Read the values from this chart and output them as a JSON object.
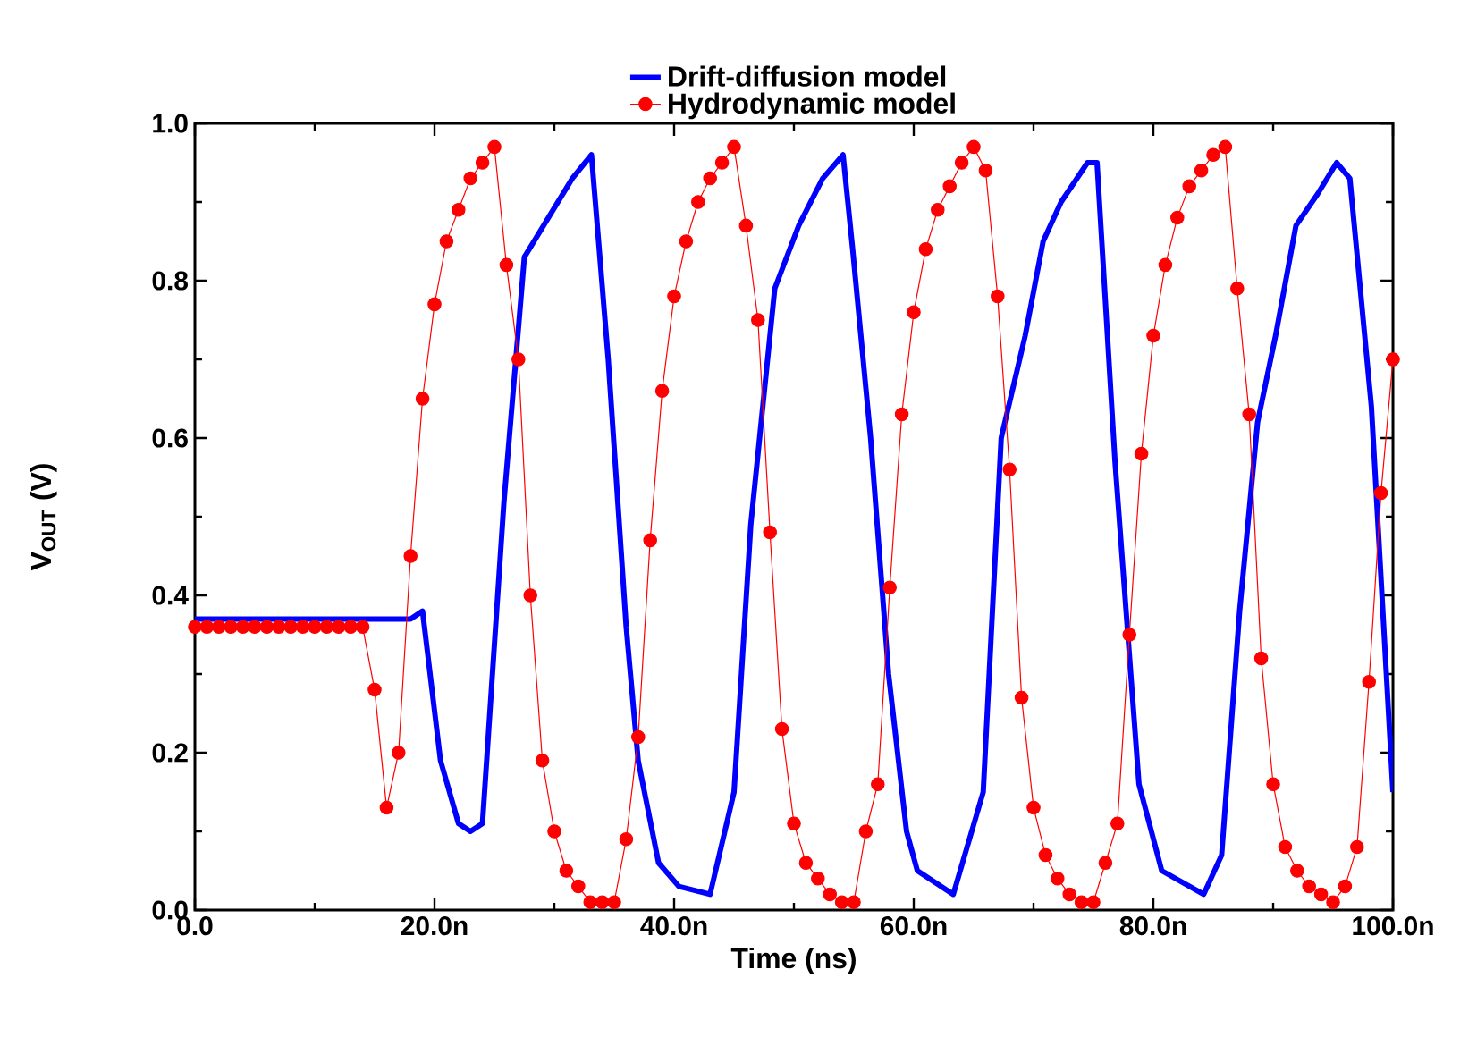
{
  "chart_data": {
    "type": "line",
    "xlabel": "Time (ns)",
    "ylabel": "V$_{OUT}$ (V)",
    "xlim": [
      0,
      100
    ],
    "xticks": [
      {
        "value": 0,
        "label": "0.0"
      },
      {
        "value": 20,
        "label": "20.0n"
      },
      {
        "value": 40,
        "label": "40.0n"
      },
      {
        "value": 60,
        "label": "60.0n"
      },
      {
        "value": 80,
        "label": "80.0n"
      },
      {
        "value": 100,
        "label": "100.0n"
      }
    ],
    "ylim": [
      0,
      1
    ],
    "yticks": [
      {
        "value": 0,
        "label": "0.0"
      },
      {
        "value": 0.2,
        "label": "0.2"
      },
      {
        "value": 0.4,
        "label": "0.4"
      },
      {
        "value": 0.6,
        "label": "0.6"
      },
      {
        "value": 0.8,
        "label": "0.8"
      },
      {
        "value": 1,
        "label": "1.0"
      }
    ],
    "grid": false,
    "legend": "top",
    "line_style": "solid",
    "series": [
      {
        "name": "Drift-diffusion model",
        "color": "#0000ff",
        "marker": "none",
        "x": [
          0,
          18,
          19,
          20.5,
          22,
          23,
          24,
          25.8,
          27.5,
          29.5,
          31.5,
          33.1,
          34.5,
          36,
          37,
          38.7,
          40.4,
          43,
          45,
          46.4,
          48.4,
          50.4,
          52.4,
          54.1,
          54.9,
          56.4,
          57.9,
          59.4,
          60.3,
          63.3,
          65.8,
          67.3,
          69.3,
          70.8,
          72.3,
          74.5,
          75.3,
          76.8,
          78.8,
          80.7,
          84.2,
          85.7,
          87.2,
          88.7,
          90.2,
          91.9,
          93.7,
          95.3,
          96.4,
          98.2,
          100
        ],
        "values": [
          0.37,
          0.37,
          0.38,
          0.19,
          0.11,
          0.1,
          0.11,
          0.52,
          0.83,
          0.88,
          0.93,
          0.96,
          0.7,
          0.36,
          0.19,
          0.06,
          0.03,
          0.02,
          0.15,
          0.49,
          0.79,
          0.87,
          0.93,
          0.96,
          0.84,
          0.6,
          0.3,
          0.1,
          0.05,
          0.02,
          0.15,
          0.6,
          0.73,
          0.85,
          0.9,
          0.95,
          0.95,
          0.57,
          0.16,
          0.05,
          0.02,
          0.07,
          0.38,
          0.62,
          0.73,
          0.87,
          0.91,
          0.95,
          0.93,
          0.64,
          0.15
        ]
      },
      {
        "name": "Hydrodynamic model",
        "color": "#ff0000",
        "marker": "circle",
        "x": [
          0,
          1,
          2,
          3,
          4,
          5,
          6,
          7,
          8,
          9,
          10,
          11,
          12,
          13,
          14,
          15,
          16,
          17,
          18,
          19,
          20,
          21,
          22,
          23,
          24,
          25,
          26,
          27,
          28,
          29,
          30,
          31,
          32,
          33,
          34,
          35,
          36,
          37,
          38,
          39,
          40,
          41,
          42,
          43,
          44,
          45,
          46,
          47,
          48,
          49,
          50,
          51,
          52,
          53,
          54,
          55,
          56,
          57,
          58,
          59,
          60,
          61,
          62,
          63,
          64,
          65,
          66,
          67,
          68,
          69,
          70,
          71,
          72,
          73,
          74,
          75,
          76,
          77,
          78,
          79,
          80,
          81,
          82,
          83,
          84,
          85,
          86,
          87,
          88,
          89,
          90,
          91,
          92,
          93,
          94,
          95,
          96,
          97,
          98,
          99,
          100
        ],
        "values": [
          0.36,
          0.36,
          0.36,
          0.36,
          0.36,
          0.36,
          0.36,
          0.36,
          0.36,
          0.36,
          0.36,
          0.36,
          0.36,
          0.36,
          0.36,
          0.28,
          0.13,
          0.2,
          0.45,
          0.65,
          0.77,
          0.85,
          0.89,
          0.93,
          0.95,
          0.97,
          0.82,
          0.7,
          0.4,
          0.19,
          0.1,
          0.05,
          0.03,
          0.01,
          0.01,
          0.01,
          0.09,
          0.22,
          0.47,
          0.66,
          0.78,
          0.85,
          0.9,
          0.93,
          0.95,
          0.97,
          0.87,
          0.75,
          0.48,
          0.23,
          0.11,
          0.06,
          0.04,
          0.02,
          0.01,
          0.01,
          0.1,
          0.16,
          0.41,
          0.63,
          0.76,
          0.84,
          0.89,
          0.92,
          0.95,
          0.97,
          0.94,
          0.78,
          0.56,
          0.27,
          0.13,
          0.07,
          0.04,
          0.02,
          0.01,
          0.01,
          0.06,
          0.11,
          0.35,
          0.58,
          0.73,
          0.82,
          0.88,
          0.92,
          0.94,
          0.96,
          0.97,
          0.79,
          0.63,
          0.32,
          0.16,
          0.08,
          0.05,
          0.03,
          0.02,
          0.01,
          0.03,
          0.08,
          0.29,
          0.53,
          0.7
        ]
      }
    ]
  }
}
